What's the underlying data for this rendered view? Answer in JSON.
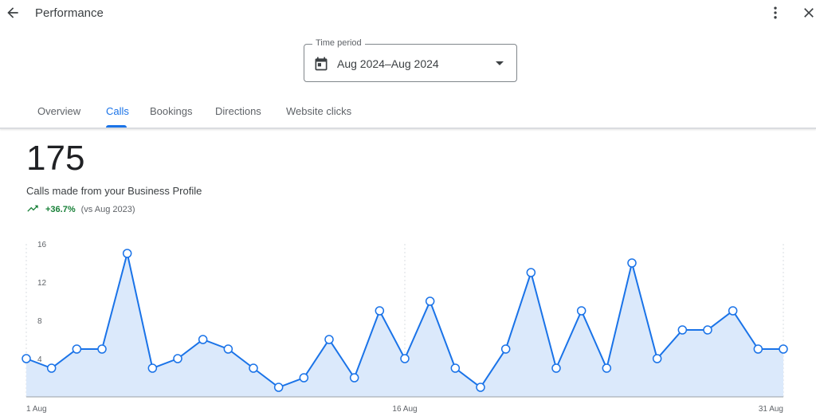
{
  "header": {
    "title": "Performance",
    "back_icon": "arrow-back-icon",
    "more_icon": "more-vert-icon",
    "close_icon": "close-icon"
  },
  "period": {
    "label": "Time period",
    "value": "Aug 2024–Aug 2024",
    "icon": "calendar-icon",
    "caret_icon": "dropdown-arrow-icon"
  },
  "tabs": [
    {
      "label": "Overview",
      "active": false
    },
    {
      "label": "Calls",
      "active": true
    },
    {
      "label": "Bookings",
      "active": false
    },
    {
      "label": "Directions",
      "active": false
    },
    {
      "label": "Website clicks",
      "active": false
    }
  ],
  "metric": {
    "value": "175",
    "label": "Calls made from your Business Profile",
    "change": "+36.7%",
    "comparison": "(vs Aug 2023)",
    "trend_icon": "trending-up-icon"
  },
  "colors": {
    "accent": "#1a73e8",
    "positive": "#188038",
    "area": "#dbe9fb"
  },
  "chart_data": {
    "type": "area",
    "x": [
      1,
      2,
      3,
      4,
      5,
      6,
      7,
      8,
      9,
      10,
      11,
      12,
      13,
      14,
      15,
      16,
      17,
      18,
      19,
      20,
      21,
      22,
      23,
      24,
      25,
      26,
      27,
      28,
      29,
      30,
      31
    ],
    "series": [
      {
        "values": [
          4,
          3,
          5,
          5,
          15,
          3,
          4,
          6,
          5,
          3,
          1,
          2,
          6,
          2,
          9,
          4,
          10,
          3,
          1,
          5,
          13,
          3,
          9,
          3,
          14,
          4,
          7,
          7,
          9,
          5,
          5
        ]
      }
    ],
    "ylim": [
      0,
      16
    ],
    "yticks": [
      4,
      8,
      12,
      16
    ],
    "xtick_labels": [
      {
        "x": 1,
        "label": "1 Aug"
      },
      {
        "x": 16,
        "label": "16 Aug"
      },
      {
        "x": 31,
        "label": "31 Aug"
      }
    ],
    "grid": "vertical-dashed"
  }
}
